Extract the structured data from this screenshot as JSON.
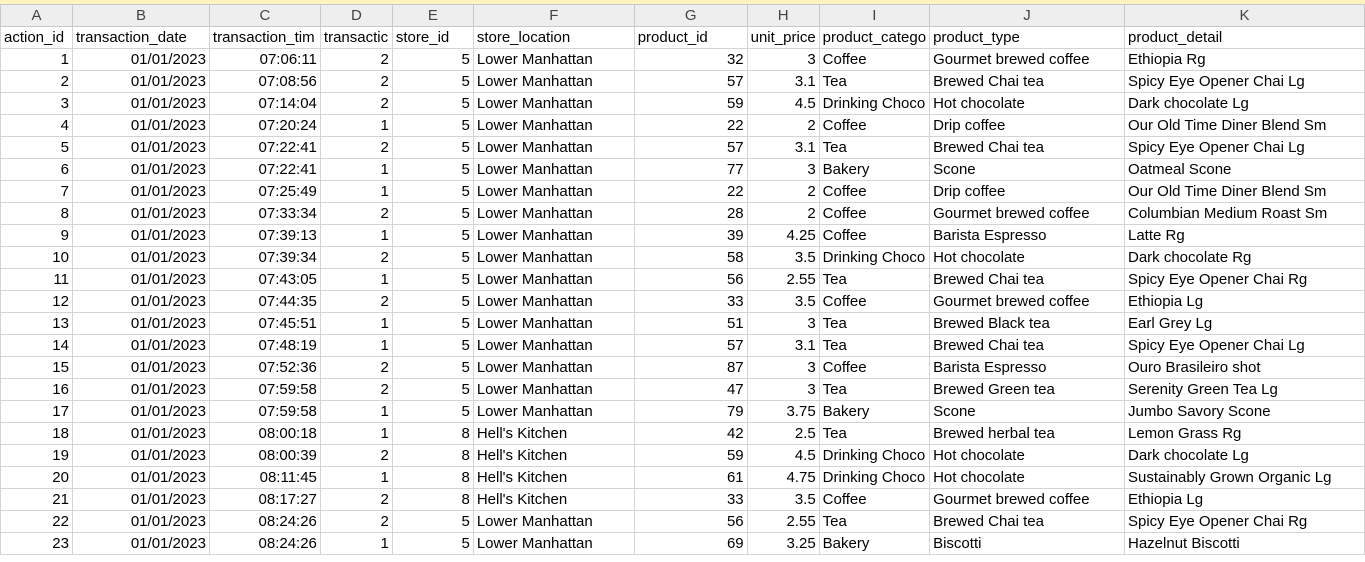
{
  "column_letters": [
    "A",
    "B",
    "C",
    "D",
    "E",
    "F",
    "G",
    "H",
    "I",
    "J",
    "K"
  ],
  "headers": [
    "action_id",
    "transaction_date",
    "transaction_tim",
    "transactic",
    "store_id",
    "store_location",
    "product_id",
    "unit_price",
    "product_catego",
    "product_type",
    "product_detail"
  ],
  "rows": [
    [
      "1",
      "01/01/2023",
      "07:06:11",
      "2",
      "5",
      "Lower Manhattan",
      "32",
      "3",
      "Coffee",
      "Gourmet brewed coffee",
      "Ethiopia Rg"
    ],
    [
      "2",
      "01/01/2023",
      "07:08:56",
      "2",
      "5",
      "Lower Manhattan",
      "57",
      "3.1",
      "Tea",
      "Brewed Chai tea",
      "Spicy Eye Opener Chai Lg"
    ],
    [
      "3",
      "01/01/2023",
      "07:14:04",
      "2",
      "5",
      "Lower Manhattan",
      "59",
      "4.5",
      "Drinking Choco",
      "Hot chocolate",
      "Dark chocolate Lg"
    ],
    [
      "4",
      "01/01/2023",
      "07:20:24",
      "1",
      "5",
      "Lower Manhattan",
      "22",
      "2",
      "Coffee",
      "Drip coffee",
      "Our Old Time Diner Blend Sm"
    ],
    [
      "5",
      "01/01/2023",
      "07:22:41",
      "2",
      "5",
      "Lower Manhattan",
      "57",
      "3.1",
      "Tea",
      "Brewed Chai tea",
      "Spicy Eye Opener Chai Lg"
    ],
    [
      "6",
      "01/01/2023",
      "07:22:41",
      "1",
      "5",
      "Lower Manhattan",
      "77",
      "3",
      "Bakery",
      "Scone",
      "Oatmeal Scone"
    ],
    [
      "7",
      "01/01/2023",
      "07:25:49",
      "1",
      "5",
      "Lower Manhattan",
      "22",
      "2",
      "Coffee",
      "Drip coffee",
      "Our Old Time Diner Blend Sm"
    ],
    [
      "8",
      "01/01/2023",
      "07:33:34",
      "2",
      "5",
      "Lower Manhattan",
      "28",
      "2",
      "Coffee",
      "Gourmet brewed coffee",
      "Columbian Medium Roast Sm"
    ],
    [
      "9",
      "01/01/2023",
      "07:39:13",
      "1",
      "5",
      "Lower Manhattan",
      "39",
      "4.25",
      "Coffee",
      "Barista Espresso",
      "Latte Rg"
    ],
    [
      "10",
      "01/01/2023",
      "07:39:34",
      "2",
      "5",
      "Lower Manhattan",
      "58",
      "3.5",
      "Drinking Choco",
      "Hot chocolate",
      "Dark chocolate Rg"
    ],
    [
      "11",
      "01/01/2023",
      "07:43:05",
      "1",
      "5",
      "Lower Manhattan",
      "56",
      "2.55",
      "Tea",
      "Brewed Chai tea",
      "Spicy Eye Opener Chai Rg"
    ],
    [
      "12",
      "01/01/2023",
      "07:44:35",
      "2",
      "5",
      "Lower Manhattan",
      "33",
      "3.5",
      "Coffee",
      "Gourmet brewed coffee",
      "Ethiopia Lg"
    ],
    [
      "13",
      "01/01/2023",
      "07:45:51",
      "1",
      "5",
      "Lower Manhattan",
      "51",
      "3",
      "Tea",
      "Brewed Black tea",
      "Earl Grey Lg"
    ],
    [
      "14",
      "01/01/2023",
      "07:48:19",
      "1",
      "5",
      "Lower Manhattan",
      "57",
      "3.1",
      "Tea",
      "Brewed Chai tea",
      "Spicy Eye Opener Chai Lg"
    ],
    [
      "15",
      "01/01/2023",
      "07:52:36",
      "2",
      "5",
      "Lower Manhattan",
      "87",
      "3",
      "Coffee",
      "Barista Espresso",
      "Ouro Brasileiro shot"
    ],
    [
      "16",
      "01/01/2023",
      "07:59:58",
      "2",
      "5",
      "Lower Manhattan",
      "47",
      "3",
      "Tea",
      "Brewed Green tea",
      "Serenity Green Tea Lg"
    ],
    [
      "17",
      "01/01/2023",
      "07:59:58",
      "1",
      "5",
      "Lower Manhattan",
      "79",
      "3.75",
      "Bakery",
      "Scone",
      "Jumbo Savory Scone"
    ],
    [
      "18",
      "01/01/2023",
      "08:00:18",
      "1",
      "8",
      "Hell's Kitchen",
      "42",
      "2.5",
      "Tea",
      "Brewed herbal tea",
      "Lemon Grass Rg"
    ],
    [
      "19",
      "01/01/2023",
      "08:00:39",
      "2",
      "8",
      "Hell's Kitchen",
      "59",
      "4.5",
      "Drinking Choco",
      "Hot chocolate",
      "Dark chocolate Lg"
    ],
    [
      "20",
      "01/01/2023",
      "08:11:45",
      "1",
      "8",
      "Hell's Kitchen",
      "61",
      "4.75",
      "Drinking Choco",
      "Hot chocolate",
      "Sustainably Grown Organic Lg"
    ],
    [
      "21",
      "01/01/2023",
      "08:17:27",
      "2",
      "8",
      "Hell's Kitchen",
      "33",
      "3.5",
      "Coffee",
      "Gourmet brewed coffee",
      "Ethiopia Lg"
    ],
    [
      "22",
      "01/01/2023",
      "08:24:26",
      "2",
      "5",
      "Lower Manhattan",
      "56",
      "2.55",
      "Tea",
      "Brewed Chai tea",
      "Spicy Eye Opener Chai Rg"
    ],
    [
      "23",
      "01/01/2023",
      "08:24:26",
      "1",
      "5",
      "Lower Manhattan",
      "69",
      "3.25",
      "Bakery",
      "Biscotti",
      "Hazelnut Biscotti"
    ]
  ]
}
